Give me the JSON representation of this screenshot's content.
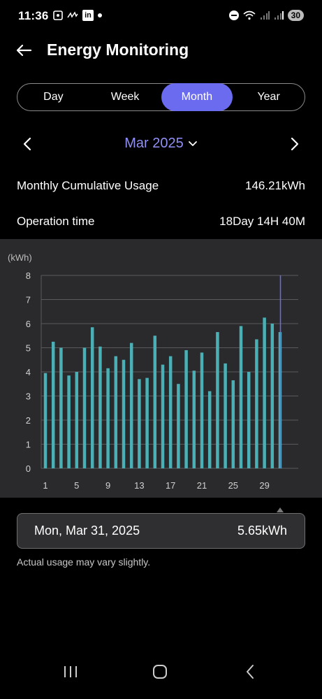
{
  "status_bar": {
    "time": "11:36",
    "left_icons": [
      "screenshot-icon",
      "signal-squiggle-icon",
      "linkedin-icon",
      "dot-icon"
    ],
    "linkedin_text": "in",
    "right_icons": [
      "dnd-icon",
      "wifi-icon",
      "signal-icon",
      "signal-icon"
    ],
    "battery": "30"
  },
  "header": {
    "title": "Energy Monitoring",
    "back_icon": "back-arrow-icon"
  },
  "tabs": [
    {
      "label": "Day",
      "active": false
    },
    {
      "label": "Week",
      "active": false
    },
    {
      "label": "Month",
      "active": true
    },
    {
      "label": "Year",
      "active": false
    }
  ],
  "period": {
    "label": "Mar 2025",
    "prev_icon": "chevron-left-icon",
    "next_icon": "chevron-right-icon",
    "dropdown_icon": "chevron-down-icon"
  },
  "summary": {
    "usage_label": "Monthly Cumulative Usage",
    "usage_value": "146.21kWh",
    "operation_label": "Operation time",
    "operation_value": "18Day 14H 40M"
  },
  "chart_data": {
    "type": "bar",
    "ylabel": "(kWh)",
    "ylim": [
      0,
      8
    ],
    "yticks": [
      "0",
      "1",
      "2",
      "3",
      "4",
      "5",
      "6",
      "7",
      "8"
    ],
    "x_tick_labels": [
      "1",
      "5",
      "9",
      "13",
      "17",
      "21",
      "25",
      "29"
    ],
    "categories": [
      "1",
      "2",
      "3",
      "4",
      "5",
      "6",
      "7",
      "8",
      "9",
      "10",
      "11",
      "12",
      "13",
      "14",
      "15",
      "16",
      "17",
      "18",
      "19",
      "20",
      "21",
      "22",
      "23",
      "24",
      "25",
      "26",
      "27",
      "28",
      "29",
      "30",
      "31"
    ],
    "values": [
      3.95,
      5.25,
      5.0,
      3.85,
      4.0,
      5.0,
      5.85,
      5.05,
      4.15,
      4.65,
      4.5,
      5.2,
      3.7,
      3.75,
      5.5,
      4.3,
      4.65,
      3.5,
      4.9,
      4.05,
      4.8,
      3.2,
      5.65,
      4.35,
      3.65,
      5.9,
      4.0,
      5.35,
      6.25,
      6.0,
      5.65
    ],
    "selected_index": 30,
    "colors": {
      "bar": "#4ab0b6",
      "selected_line": "#6b6bf0",
      "grid": "#5a5a5e",
      "background": "#2a2a2c"
    }
  },
  "detail": {
    "date": "Mon, Mar 31, 2025",
    "value": "5.65kWh"
  },
  "disclaimer": "Actual usage may vary slightly.",
  "nav_bar": {
    "recent_icon": "recent-apps-icon",
    "home_icon": "home-icon",
    "back_icon": "back-icon"
  }
}
